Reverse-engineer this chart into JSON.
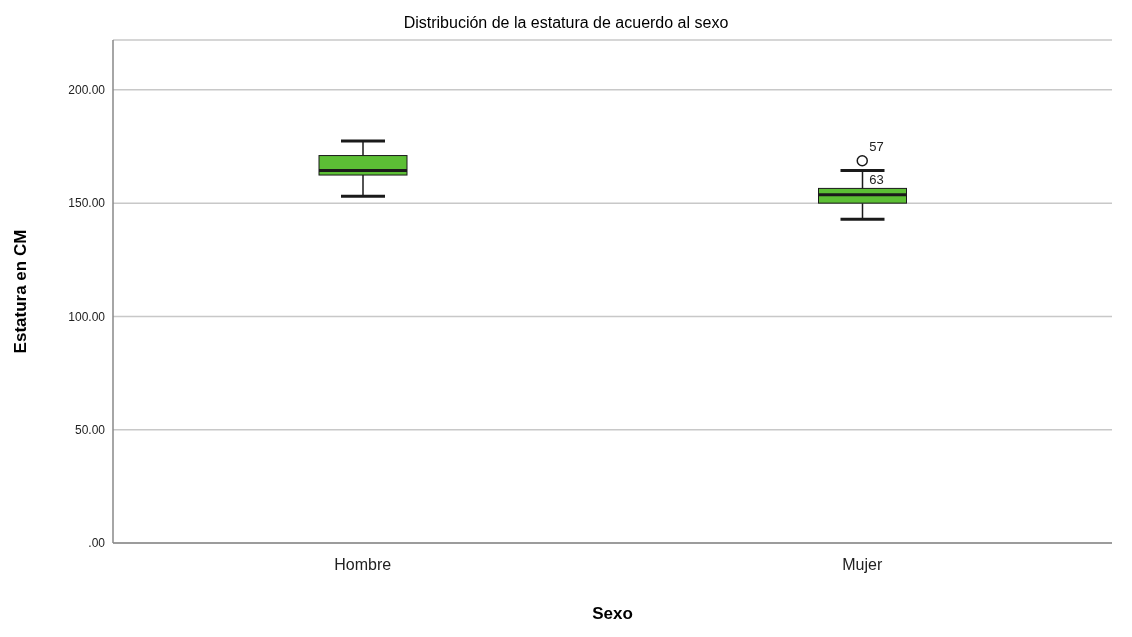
{
  "chart_data": {
    "type": "box",
    "title": "Distribución de la estatura de acuerdo al sexo",
    "xlabel": "Sexo",
    "ylabel": "Estatura en CM",
    "categories": [
      "Hombre",
      "Mujer"
    ],
    "boxes": [
      {
        "low": 153,
        "q1": 162.4,
        "median": 164.4,
        "q3": 171,
        "high": 177.4
      },
      {
        "low": 142.9,
        "q1": 150,
        "median": 153.7,
        "q3": 156.5,
        "high": 164.4,
        "outliers": [
          168.7
        ]
      }
    ],
    "color": "#5cbf35",
    "annotations": [
      "57",
      "63"
    ],
    "ylim": [
      0,
      222
    ],
    "yticks": [
      {
        "value": 0,
        "label": ".00"
      },
      {
        "value": 50,
        "label": "50.00"
      },
      {
        "value": 100,
        "label": "100.00"
      },
      {
        "value": 150,
        "label": "150.00"
      },
      {
        "value": 200,
        "label": "200.00"
      }
    ],
    "grid": "y",
    "marker": "circle"
  }
}
